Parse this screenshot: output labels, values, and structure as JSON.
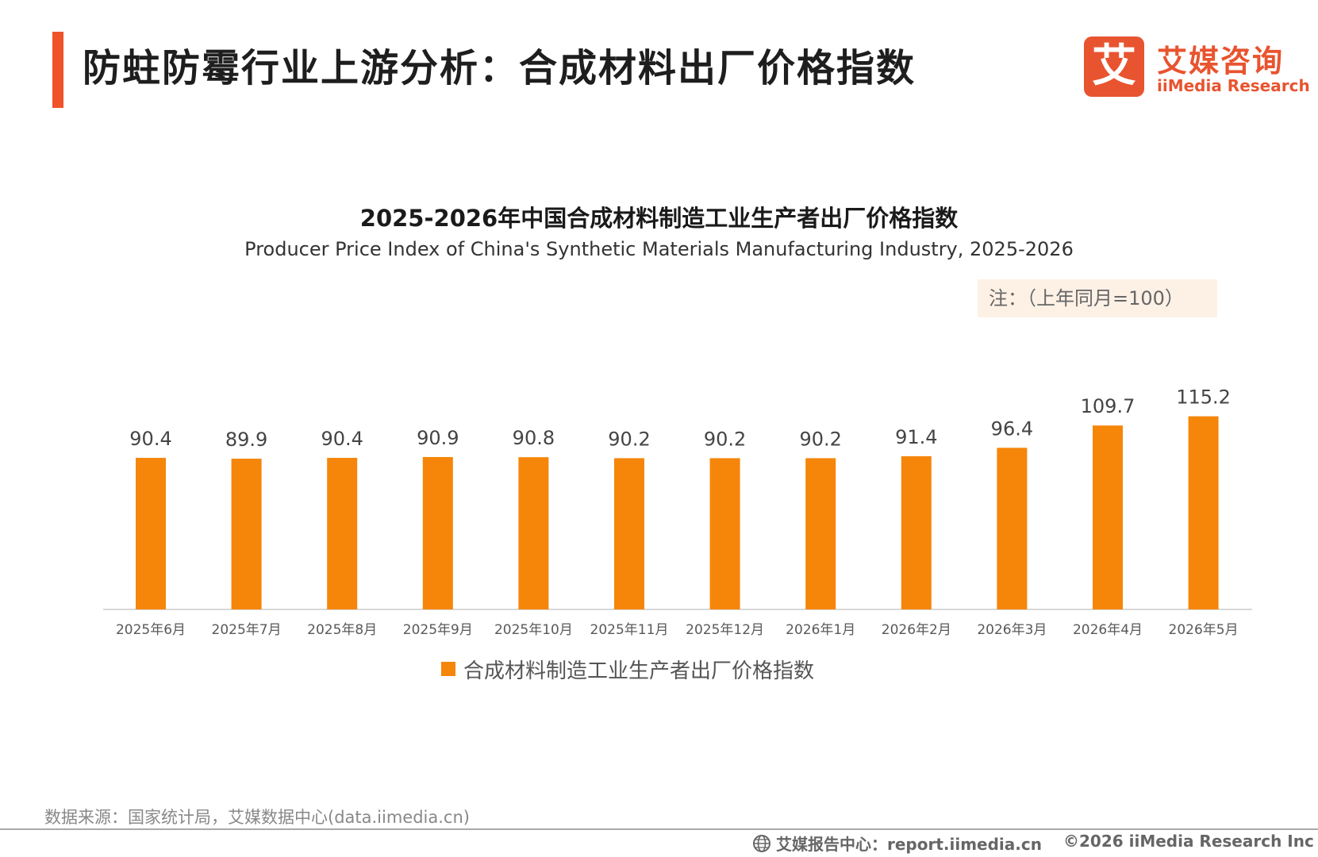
{
  "header": {
    "title": "防蛀防霉行业上游分析：合成材料出厂价格指数",
    "accent_color": "#f0532a"
  },
  "logo": {
    "mark": "艾",
    "name_cn": "艾媒咨询",
    "name_en": "iiMedia Research",
    "color": "#e8542f"
  },
  "note": "注：（上年同月=100）",
  "chart_data": {
    "type": "bar",
    "title": "2025-2026年中国合成材料制造工业生产者出厂价格指数",
    "subtitle": "Producer Price Index of China's Synthetic Materials Manufacturing Industry, 2025-2026",
    "categories": [
      "2025年6月",
      "2025年7月",
      "2025年8月",
      "2025年9月",
      "2025年10月",
      "2025年11月",
      "2025年12月",
      "2026年1月",
      "2026年2月",
      "2026年3月",
      "2026年4月",
      "2026年5月"
    ],
    "series": [
      {
        "name": "合成材料制造工业生产者出厂价格指数",
        "values": [
          90.4,
          89.9,
          90.4,
          90.9,
          90.8,
          90.2,
          90.2,
          90.2,
          91.4,
          96.4,
          109.7,
          115.2
        ],
        "color": "#f5860a"
      }
    ],
    "data_labels": true,
    "grid": false,
    "legend_position": "bottom"
  },
  "footer": {
    "source": "数据来源：国家统计局，艾媒数据中心(data.iimedia.cn)",
    "report_center": "艾媒报告中心：report.iimedia.cn",
    "copyright": "©2026  iiMedia Research  Inc"
  }
}
